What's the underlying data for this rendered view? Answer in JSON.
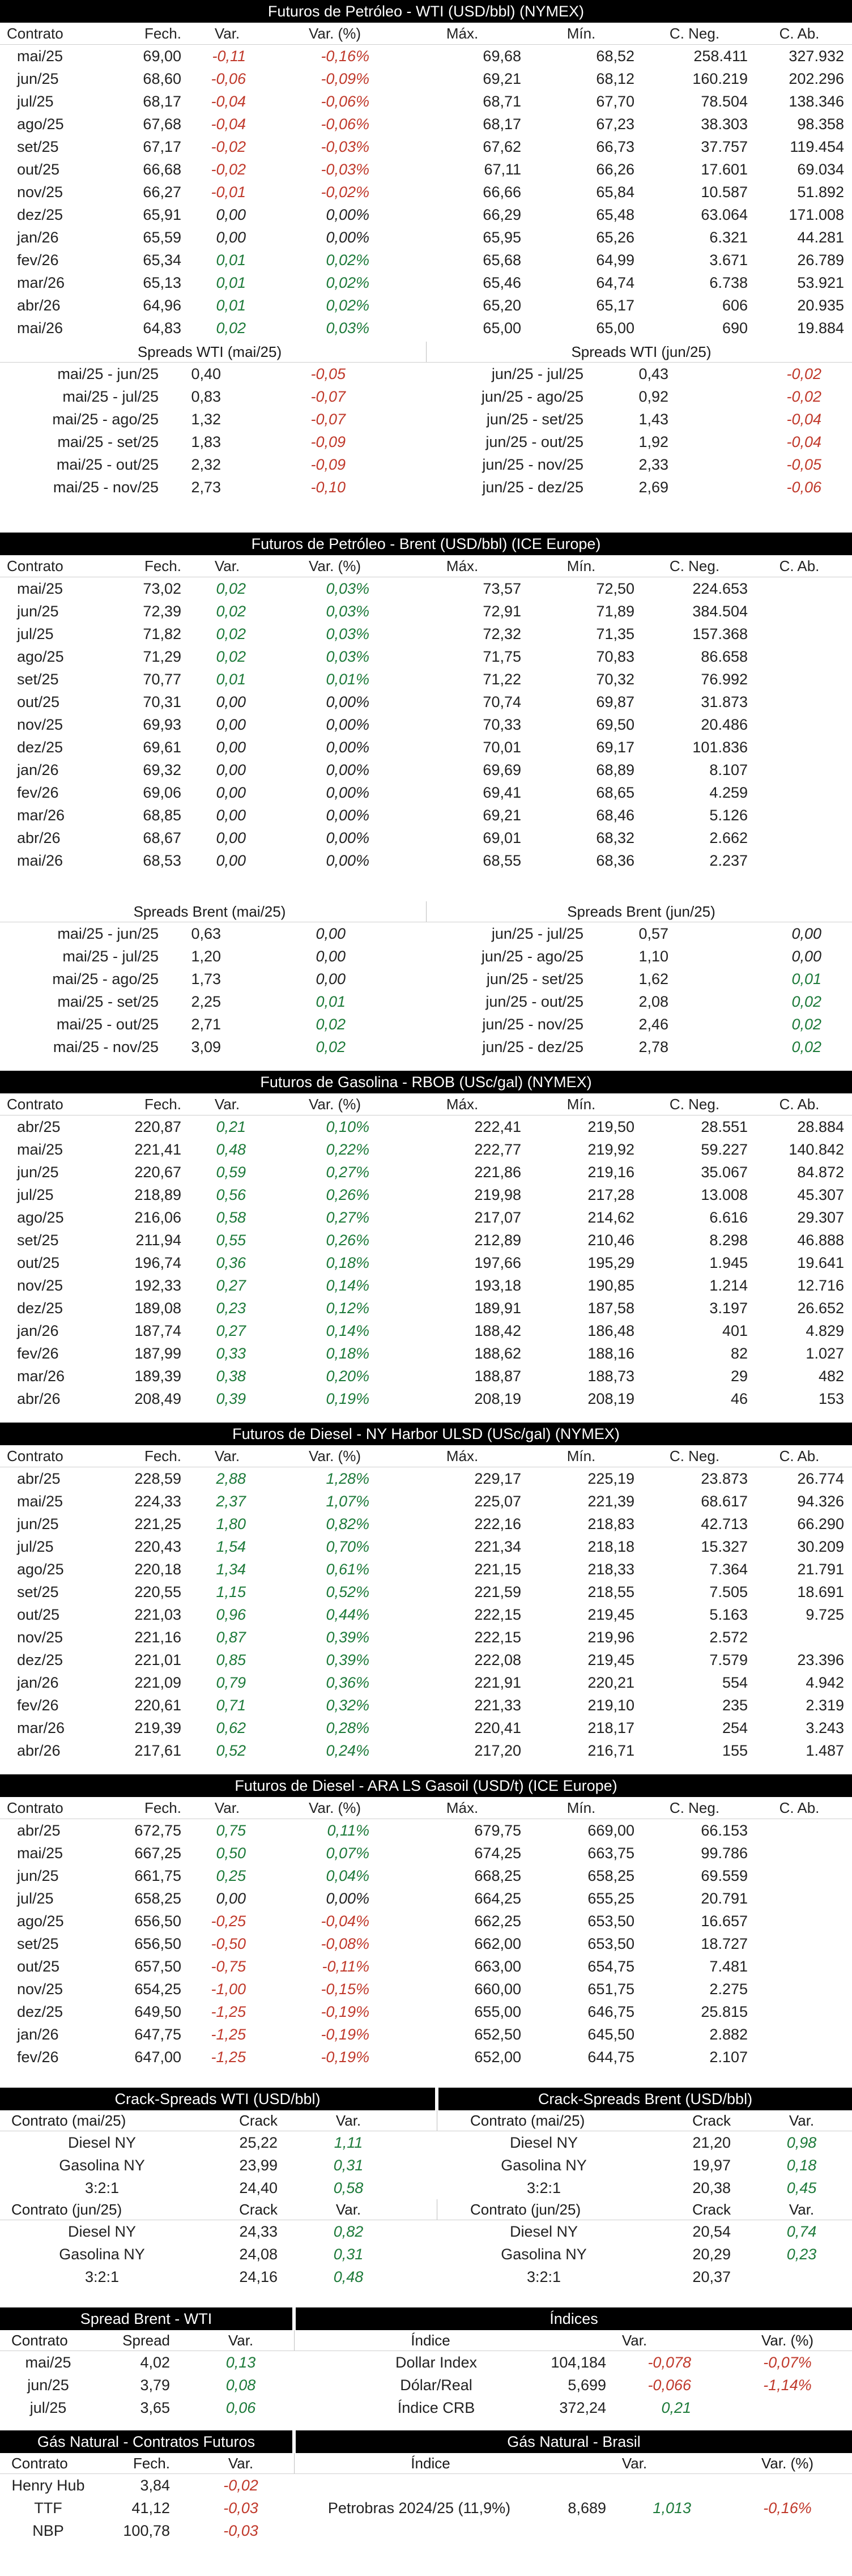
{
  "colors": {
    "neg": "#c0392b",
    "pos": "#1d7a3a",
    "header_bg": "#000000"
  },
  "futures_headers": [
    "Contrato",
    "Fech.",
    "Var.",
    "Var. (%)",
    "Máx.",
    "Mín.",
    "C. Neg.",
    "C. Ab."
  ],
  "wti": {
    "title": "Futuros de Petróleo - WTI (USD/bbl) (NYMEX)",
    "rows": [
      [
        "mai/25",
        "69,00",
        "-0,11",
        "-0,16%",
        "69,68",
        "68,52",
        "258.411",
        "327.932"
      ],
      [
        "jun/25",
        "68,60",
        "-0,06",
        "-0,09%",
        "69,21",
        "68,12",
        "160.219",
        "202.296"
      ],
      [
        "jul/25",
        "68,17",
        "-0,04",
        "-0,06%",
        "68,71",
        "67,70",
        "78.504",
        "138.346"
      ],
      [
        "ago/25",
        "67,68",
        "-0,04",
        "-0,06%",
        "68,17",
        "67,23",
        "38.303",
        "98.358"
      ],
      [
        "set/25",
        "67,17",
        "-0,02",
        "-0,03%",
        "67,62",
        "66,73",
        "37.757",
        "119.454"
      ],
      [
        "out/25",
        "66,68",
        "-0,02",
        "-0,03%",
        "67,11",
        "66,26",
        "17.601",
        "69.034"
      ],
      [
        "nov/25",
        "66,27",
        "-0,01",
        "-0,02%",
        "66,66",
        "65,84",
        "10.587",
        "51.892"
      ],
      [
        "dez/25",
        "65,91",
        "0,00",
        "0,00%",
        "66,29",
        "65,48",
        "63.064",
        "171.008"
      ],
      [
        "jan/26",
        "65,59",
        "0,00",
        "0,00%",
        "65,95",
        "65,26",
        "6.321",
        "44.281"
      ],
      [
        "fev/26",
        "65,34",
        "0,01",
        "0,02%",
        "65,68",
        "64,99",
        "3.671",
        "26.789"
      ],
      [
        "mar/26",
        "65,13",
        "0,01",
        "0,02%",
        "65,46",
        "64,74",
        "6.738",
        "53.921"
      ],
      [
        "abr/26",
        "64,96",
        "0,01",
        "0,02%",
        "65,20",
        "65,17",
        "606",
        "20.935"
      ],
      [
        "mai/26",
        "64,83",
        "0,02",
        "0,03%",
        "65,00",
        "65,00",
        "690",
        "19.884"
      ]
    ],
    "spread_left_title": "Spreads WTI (mai/25)",
    "spread_right_title": "Spreads WTI (jun/25)",
    "spreads": [
      [
        "mai/25 - jun/25",
        "0,40",
        "-0,05",
        "jun/25 - jul/25",
        "0,43",
        "-0,02"
      ],
      [
        "mai/25 - jul/25",
        "0,83",
        "-0,07",
        "jun/25 - ago/25",
        "0,92",
        "-0,02"
      ],
      [
        "mai/25 - ago/25",
        "1,32",
        "-0,07",
        "jun/25 - set/25",
        "1,43",
        "-0,04"
      ],
      [
        "mai/25 - set/25",
        "1,83",
        "-0,09",
        "jun/25 - out/25",
        "1,92",
        "-0,04"
      ],
      [
        "mai/25 - out/25",
        "2,32",
        "-0,09",
        "jun/25 - nov/25",
        "2,33",
        "-0,05"
      ],
      [
        "mai/25 - nov/25",
        "2,73",
        "-0,10",
        "jun/25 - dez/25",
        "2,69",
        "-0,06"
      ]
    ]
  },
  "brent": {
    "title": "Futuros de Petróleo - Brent (USD/bbl) (ICE Europe)",
    "rows": [
      [
        "mai/25",
        "73,02",
        "0,02",
        "0,03%",
        "73,57",
        "72,50",
        "224.653",
        ""
      ],
      [
        "jun/25",
        "72,39",
        "0,02",
        "0,03%",
        "72,91",
        "71,89",
        "384.504",
        ""
      ],
      [
        "jul/25",
        "71,82",
        "0,02",
        "0,03%",
        "72,32",
        "71,35",
        "157.368",
        ""
      ],
      [
        "ago/25",
        "71,29",
        "0,02",
        "0,03%",
        "71,75",
        "70,83",
        "86.658",
        ""
      ],
      [
        "set/25",
        "70,77",
        "0,01",
        "0,01%",
        "71,22",
        "70,32",
        "76.992",
        ""
      ],
      [
        "out/25",
        "70,31",
        "0,00",
        "0,00%",
        "70,74",
        "69,87",
        "31.873",
        ""
      ],
      [
        "nov/25",
        "69,93",
        "0,00",
        "0,00%",
        "70,33",
        "69,50",
        "20.486",
        ""
      ],
      [
        "dez/25",
        "69,61",
        "0,00",
        "0,00%",
        "70,01",
        "69,17",
        "101.836",
        ""
      ],
      [
        "jan/26",
        "69,32",
        "0,00",
        "0,00%",
        "69,69",
        "68,89",
        "8.107",
        ""
      ],
      [
        "fev/26",
        "69,06",
        "0,00",
        "0,00%",
        "69,41",
        "68,65",
        "4.259",
        ""
      ],
      [
        "mar/26",
        "68,85",
        "0,00",
        "0,00%",
        "69,21",
        "68,46",
        "5.126",
        ""
      ],
      [
        "abr/26",
        "68,67",
        "0,00",
        "0,00%",
        "69,01",
        "68,32",
        "2.662",
        ""
      ],
      [
        "mai/26",
        "68,53",
        "0,00",
        "0,00%",
        "68,55",
        "68,36",
        "2.237",
        ""
      ]
    ],
    "spread_left_title": "Spreads Brent (mai/25)",
    "spread_right_title": "Spreads Brent (jun/25)",
    "spreads": [
      [
        "mai/25 - jun/25",
        "0,63",
        "0,00",
        "jun/25 - jul/25",
        "0,57",
        "0,00"
      ],
      [
        "mai/25 - jul/25",
        "1,20",
        "0,00",
        "jun/25 - ago/25",
        "1,10",
        "0,00"
      ],
      [
        "mai/25 - ago/25",
        "1,73",
        "0,00",
        "jun/25 - set/25",
        "1,62",
        "0,01"
      ],
      [
        "mai/25 - set/25",
        "2,25",
        "0,01",
        "jun/25 - out/25",
        "2,08",
        "0,02"
      ],
      [
        "mai/25 - out/25",
        "2,71",
        "0,02",
        "jun/25 - nov/25",
        "2,46",
        "0,02"
      ],
      [
        "mai/25 - nov/25",
        "3,09",
        "0,02",
        "jun/25 - dez/25",
        "2,78",
        "0,02"
      ]
    ]
  },
  "rbob": {
    "title": "Futuros de Gasolina - RBOB (USc/gal) (NYMEX)",
    "rows": [
      [
        "abr/25",
        "220,87",
        "0,21",
        "0,10%",
        "222,41",
        "219,50",
        "28.551",
        "28.884"
      ],
      [
        "mai/25",
        "221,41",
        "0,48",
        "0,22%",
        "222,77",
        "219,92",
        "59.227",
        "140.842"
      ],
      [
        "jun/25",
        "220,67",
        "0,59",
        "0,27%",
        "221,86",
        "219,16",
        "35.067",
        "84.872"
      ],
      [
        "jul/25",
        "218,89",
        "0,56",
        "0,26%",
        "219,98",
        "217,28",
        "13.008",
        "45.307"
      ],
      [
        "ago/25",
        "216,06",
        "0,58",
        "0,27%",
        "217,07",
        "214,62",
        "6.616",
        "29.307"
      ],
      [
        "set/25",
        "211,94",
        "0,55",
        "0,26%",
        "212,89",
        "210,46",
        "8.298",
        "46.888"
      ],
      [
        "out/25",
        "196,74",
        "0,36",
        "0,18%",
        "197,66",
        "195,29",
        "1.945",
        "19.641"
      ],
      [
        "nov/25",
        "192,33",
        "0,27",
        "0,14%",
        "193,18",
        "190,85",
        "1.214",
        "12.716"
      ],
      [
        "dez/25",
        "189,08",
        "0,23",
        "0,12%",
        "189,91",
        "187,58",
        "3.197",
        "26.652"
      ],
      [
        "jan/26",
        "187,74",
        "0,27",
        "0,14%",
        "188,42",
        "186,48",
        "401",
        "4.829"
      ],
      [
        "fev/26",
        "187,99",
        "0,33",
        "0,18%",
        "188,62",
        "188,16",
        "82",
        "1.027"
      ],
      [
        "mar/26",
        "189,39",
        "0,38",
        "0,20%",
        "188,87",
        "188,73",
        "29",
        "482"
      ],
      [
        "abr/26",
        "208,49",
        "0,39",
        "0,19%",
        "208,19",
        "208,19",
        "46",
        "153"
      ]
    ]
  },
  "ulsd": {
    "title": "Futuros de Diesel - NY Harbor ULSD (USc/gal) (NYMEX)",
    "rows": [
      [
        "abr/25",
        "228,59",
        "2,88",
        "1,28%",
        "229,17",
        "225,19",
        "23.873",
        "26.774"
      ],
      [
        "mai/25",
        "224,33",
        "2,37",
        "1,07%",
        "225,07",
        "221,39",
        "68.617",
        "94.326"
      ],
      [
        "jun/25",
        "221,25",
        "1,80",
        "0,82%",
        "222,16",
        "218,83",
        "42.713",
        "66.290"
      ],
      [
        "jul/25",
        "220,43",
        "1,54",
        "0,70%",
        "221,34",
        "218,18",
        "15.327",
        "30.209"
      ],
      [
        "ago/25",
        "220,18",
        "1,34",
        "0,61%",
        "221,15",
        "218,33",
        "7.364",
        "21.791"
      ],
      [
        "set/25",
        "220,55",
        "1,15",
        "0,52%",
        "221,59",
        "218,55",
        "7.505",
        "18.691"
      ],
      [
        "out/25",
        "221,03",
        "0,96",
        "0,44%",
        "222,15",
        "219,45",
        "5.163",
        "9.725"
      ],
      [
        "nov/25",
        "221,16",
        "0,87",
        "0,39%",
        "222,15",
        "219,96",
        "2.572",
        ""
      ],
      [
        "dez/25",
        "221,01",
        "0,85",
        "0,39%",
        "222,08",
        "219,45",
        "7.579",
        "23.396"
      ],
      [
        "jan/26",
        "221,09",
        "0,79",
        "0,36%",
        "221,91",
        "220,21",
        "554",
        "4.942"
      ],
      [
        "fev/26",
        "220,61",
        "0,71",
        "0,32%",
        "221,33",
        "219,10",
        "235",
        "2.319"
      ],
      [
        "mar/26",
        "219,39",
        "0,62",
        "0,28%",
        "220,41",
        "218,17",
        "254",
        "3.243"
      ],
      [
        "abr/26",
        "217,61",
        "0,52",
        "0,24%",
        "217,20",
        "216,71",
        "155",
        "1.487"
      ]
    ]
  },
  "gasoil": {
    "title": "Futuros de Diesel - ARA LS Gasoil (USD/t) (ICE Europe)",
    "rows": [
      [
        "abr/25",
        "672,75",
        "0,75",
        "0,11%",
        "679,75",
        "669,00",
        "66.153",
        ""
      ],
      [
        "mai/25",
        "667,25",
        "0,50",
        "0,07%",
        "674,25",
        "663,75",
        "99.786",
        ""
      ],
      [
        "jun/25",
        "661,75",
        "0,25",
        "0,04%",
        "668,25",
        "658,25",
        "69.559",
        ""
      ],
      [
        "jul/25",
        "658,25",
        "0,00",
        "0,00%",
        "664,25",
        "655,25",
        "20.791",
        ""
      ],
      [
        "ago/25",
        "656,50",
        "-0,25",
        "-0,04%",
        "662,25",
        "653,50",
        "16.657",
        ""
      ],
      [
        "set/25",
        "656,50",
        "-0,50",
        "-0,08%",
        "662,00",
        "653,50",
        "18.727",
        ""
      ],
      [
        "out/25",
        "657,50",
        "-0,75",
        "-0,11%",
        "663,00",
        "654,75",
        "7.481",
        ""
      ],
      [
        "nov/25",
        "654,25",
        "-1,00",
        "-0,15%",
        "660,00",
        "651,75",
        "2.275",
        ""
      ],
      [
        "dez/25",
        "649,50",
        "-1,25",
        "-0,19%",
        "655,00",
        "646,75",
        "25.815",
        ""
      ],
      [
        "jan/26",
        "647,75",
        "-1,25",
        "-0,19%",
        "652,50",
        "645,50",
        "2.882",
        ""
      ],
      [
        "fev/26",
        "647,00",
        "-1,25",
        "-0,19%",
        "652,00",
        "644,75",
        "2.107",
        ""
      ]
    ]
  },
  "crack": {
    "left_title": "Crack-Spreads WTI (USD/bbl)",
    "right_title": "Crack-Spreads Brent (USD/bbl)",
    "head_a": [
      "Contrato (mai/25)",
      "Crack",
      "Var."
    ],
    "head_b": [
      "Contrato (jun/25)",
      "Crack",
      "Var."
    ],
    "left_a": [
      [
        "Diesel NY",
        "25,22",
        "1,11"
      ],
      [
        "Gasolina NY",
        "23,99",
        "0,31"
      ],
      [
        "3:2:1",
        "24,40",
        "0,58"
      ]
    ],
    "left_b": [
      [
        "Diesel NY",
        "24,33",
        "0,82"
      ],
      [
        "Gasolina NY",
        "24,08",
        "0,31"
      ],
      [
        "3:2:1",
        "24,16",
        "0,48"
      ]
    ],
    "right_a": [
      [
        "Diesel NY",
        "21,20",
        "0,98"
      ],
      [
        "Gasolina NY",
        "19,97",
        "0,18"
      ],
      [
        "3:2:1",
        "20,38",
        "0,45"
      ]
    ],
    "right_b": [
      [
        "Diesel NY",
        "20,54",
        "0,74"
      ],
      [
        "Gasolina NY",
        "20,29",
        "0,23"
      ],
      [
        "3:2:1",
        "20,37",
        ""
      ]
    ]
  },
  "spread_bw": {
    "title": "Spread Brent - WTI",
    "head": [
      "Contrato",
      "Spread",
      "Var."
    ],
    "rows": [
      [
        "mai/25",
        "4,02",
        "0,13"
      ],
      [
        "jun/25",
        "3,79",
        "0,08"
      ],
      [
        "jul/25",
        "3,65",
        "0,06"
      ]
    ]
  },
  "indices": {
    "title": "Índices",
    "head": [
      "Índice",
      "Var.",
      "Var. (%)"
    ],
    "rows": [
      [
        "Dollar Index",
        "104,184",
        "-0,078",
        "-0,07%"
      ],
      [
        "Dólar/Real",
        "5,699",
        "-0,066",
        "-1,14%"
      ],
      [
        "Índice CRB",
        "372,24",
        "0,21",
        ""
      ]
    ]
  },
  "gas": {
    "left_title": "Gás Natural - Contratos Futuros",
    "right_title": "Gás Natural - Brasil",
    "head": [
      "Contrato",
      "Fech.",
      "Var."
    ],
    "rows": [
      [
        "Henry Hub",
        "3,84",
        "-0,02"
      ],
      [
        "TTF",
        "41,12",
        "-0,03"
      ],
      [
        "NBP",
        "100,78",
        "-0,03"
      ]
    ],
    "brasil": [
      "Petrobras 2024/25 (11,9%)",
      "8,689",
      "1,013",
      "-0,16%"
    ]
  }
}
